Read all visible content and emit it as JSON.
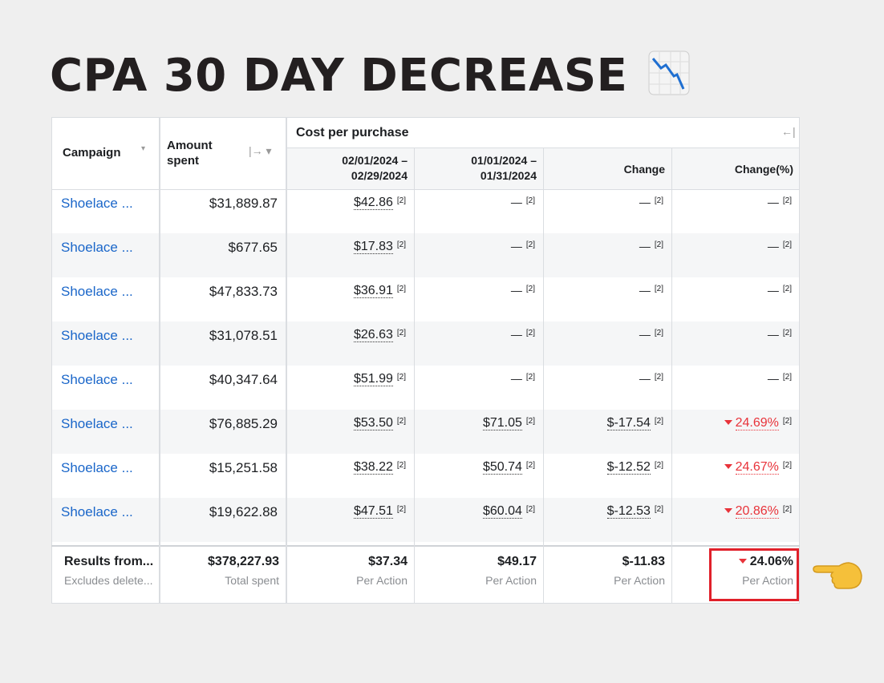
{
  "header": {
    "title": "CPA 30 DAY DECREASE"
  },
  "table": {
    "columns": [
      "Campaign",
      "Amount spent",
      "02/01/2024 – 02/29/2024",
      "01/01/2024 – 01/31/2024",
      "Change",
      "Change(%)"
    ],
    "group": "Cost per purchase",
    "note": "[2]",
    "rows": [
      {
        "campaign": "Shoelace ...",
        "amount": "$31,889.87",
        "values": [
          "$42.86",
          "—",
          "—",
          "—"
        ]
      },
      {
        "campaign": "Shoelace ...",
        "amount": "$677.65",
        "values": [
          "$17.83",
          "—",
          "—",
          "—"
        ]
      },
      {
        "campaign": "Shoelace ...",
        "amount": "$47,833.73",
        "values": [
          "$36.91",
          "—",
          "—",
          "—"
        ]
      },
      {
        "campaign": "Shoelace ...",
        "amount": "$31,078.51",
        "values": [
          "$26.63",
          "—",
          "—",
          "—"
        ]
      },
      {
        "campaign": "Shoelace ...",
        "amount": "$40,347.64",
        "values": [
          "$51.99",
          "—",
          "—",
          "—"
        ]
      },
      {
        "campaign": "Shoelace ...",
        "amount": "$76,885.29",
        "values": [
          "$53.50",
          "$71.05",
          "$-17.54",
          "24.69%"
        ],
        "direction": "down"
      },
      {
        "campaign": "Shoelace ...",
        "amount": "$15,251.58",
        "values": [
          "$38.22",
          "$50.74",
          "$-12.52",
          "24.67%"
        ],
        "direction": "down"
      },
      {
        "campaign": "Shoelace ...",
        "amount": "$19,622.88",
        "values": [
          "$47.51",
          "$60.04",
          "$-12.53",
          "20.86%"
        ],
        "direction": "down"
      }
    ],
    "footer": {
      "label": "Results from...",
      "sublabel": "Excludes delete...",
      "cells": [
        {
          "value": "$378,227.93",
          "sub": "Total spent"
        },
        {
          "value": "$37.34",
          "sub": "Per Action"
        },
        {
          "value": "$49.17",
          "sub": "Per Action"
        },
        {
          "value": "$-11.83",
          "sub": "Per Action"
        },
        {
          "value": "24.06%",
          "sub": "Per Action",
          "direction": "down",
          "highlight": true
        }
      ]
    }
  }
}
